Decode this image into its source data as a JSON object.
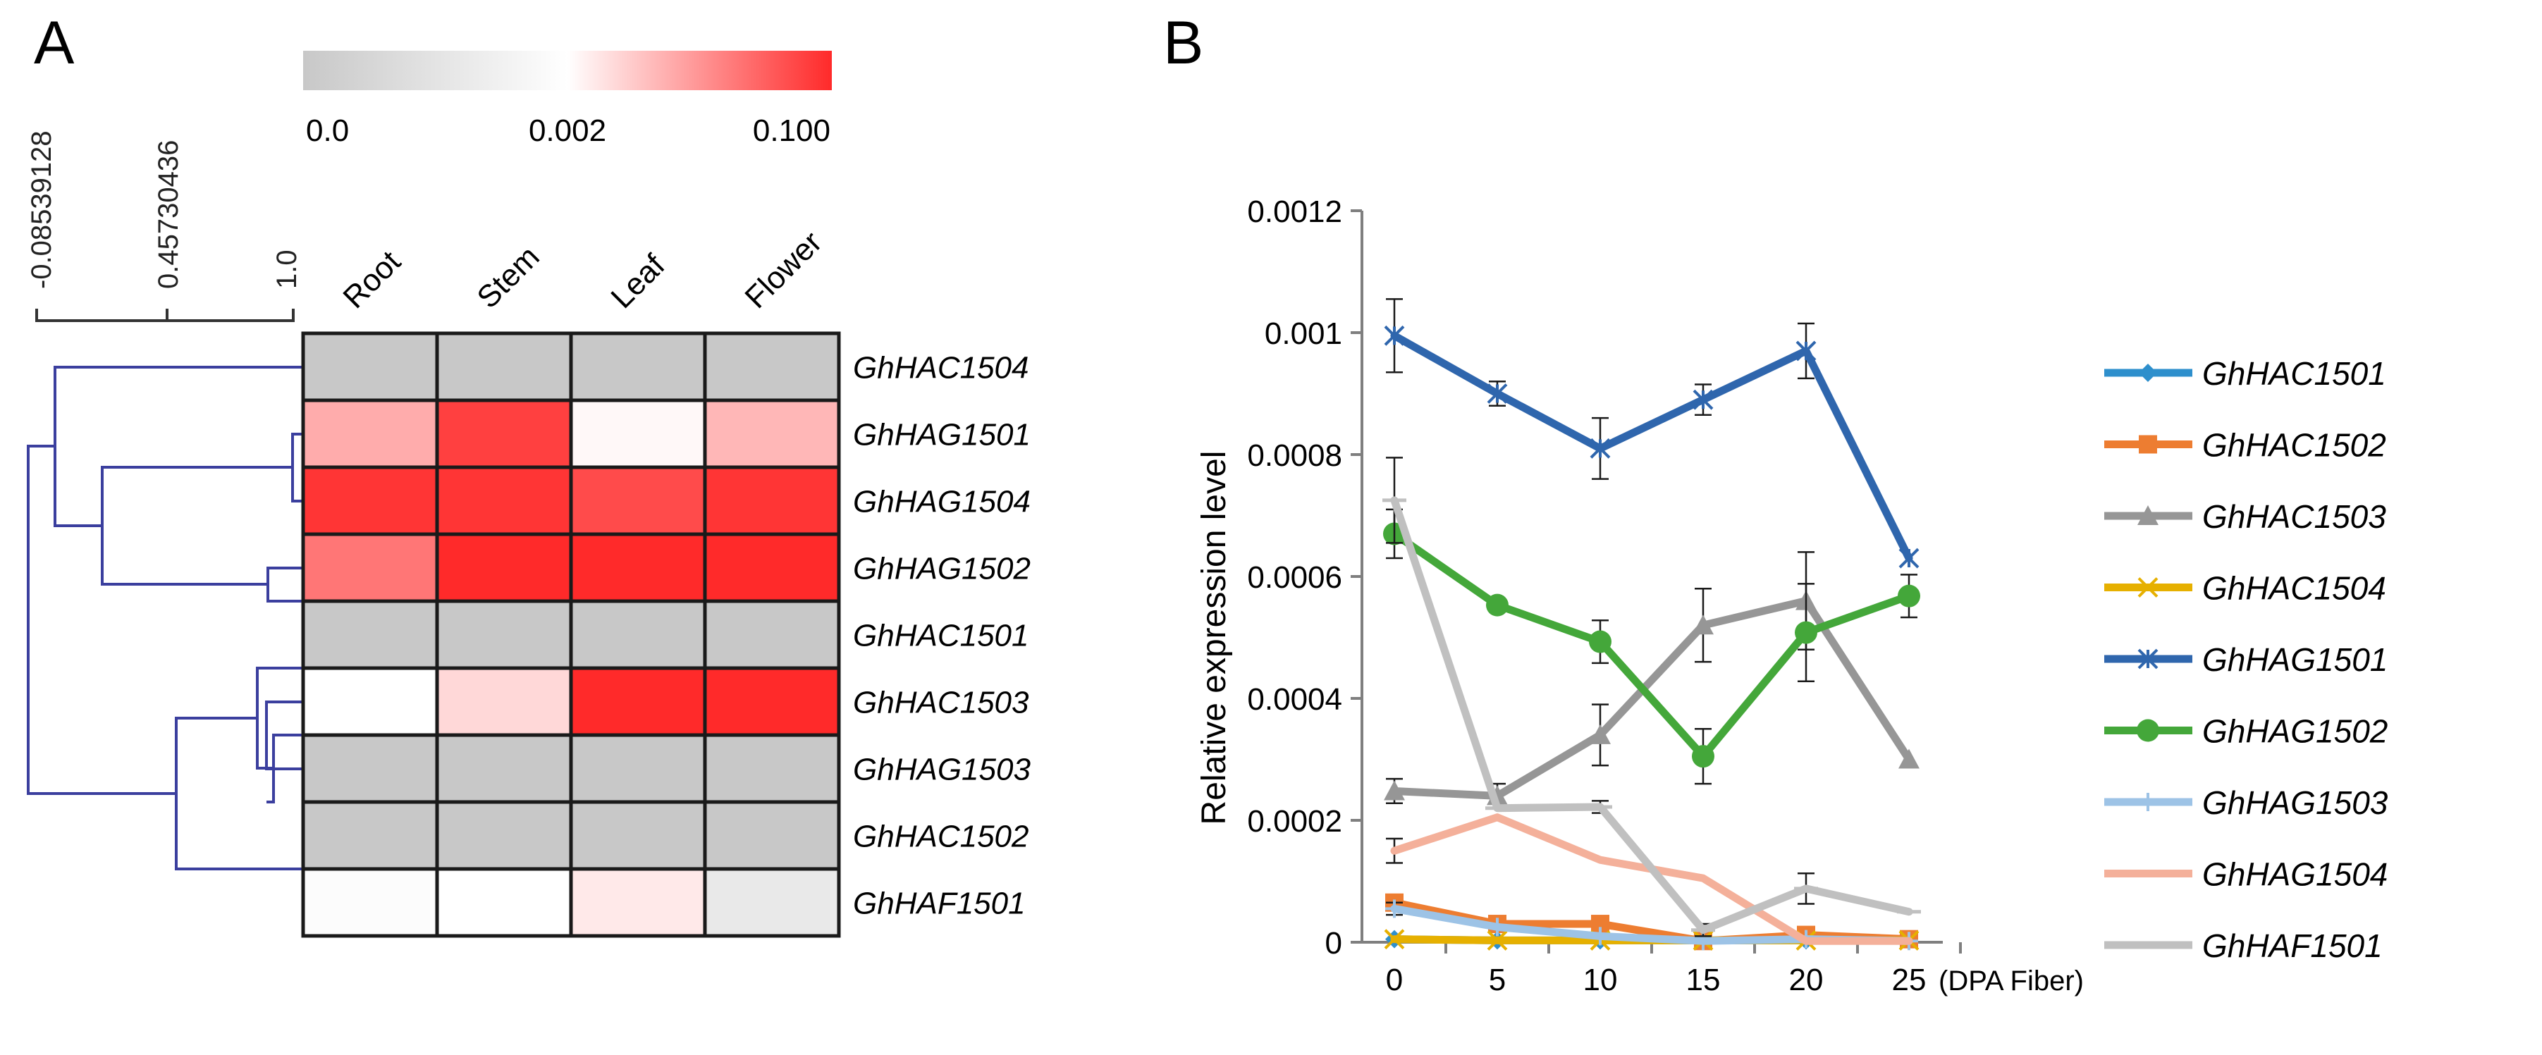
{
  "panels": {
    "a": "A",
    "b": "B"
  },
  "chart_data": [
    {
      "type": "heatmap",
      "panel": "A",
      "columns": [
        "Root",
        "Stem",
        "Leaf",
        "Flower"
      ],
      "rows": [
        "GhHAC1504",
        "GhHAG1501",
        "GhHAG1504",
        "GhHAG1502",
        "GhHAC1501",
        "GhHAC1503",
        "GhHAG1503",
        "GhHAC1502",
        "GhHAF1501"
      ],
      "values": [
        [
          0.0,
          0.0,
          0.0,
          0.0
        ],
        [
          0.04,
          0.09,
          0.005,
          0.035
        ],
        [
          0.095,
          0.095,
          0.085,
          0.095
        ],
        [
          0.065,
          0.1,
          0.1,
          0.1
        ],
        [
          0.0,
          0.0,
          0.0,
          0.0
        ],
        [
          0.0021,
          0.02,
          0.1,
          0.1
        ],
        [
          0.0,
          0.0,
          0.0,
          0.0
        ],
        [
          0.0,
          0.0,
          0.0,
          0.0
        ],
        [
          0.0019,
          0.002,
          0.012,
          0.0012
        ]
      ],
      "color_scale": {
        "ticks": [
          "0.0",
          "0.002",
          "0.100"
        ],
        "stops": [
          {
            "value": 0.0,
            "color": "#c8c8c8"
          },
          {
            "value": 0.002,
            "color": "#ffffff"
          },
          {
            "value": 0.1,
            "color": "#ff2a2a"
          }
        ]
      },
      "dendrogram": {
        "scale_ticks": [
          "-0.08539128",
          "0.45730436",
          "1.0"
        ],
        "color": "#3b3f9e"
      },
      "colors": {
        "missing": "#c8c8c8",
        "grid": "#1a1a1a"
      }
    },
    {
      "type": "line",
      "panel": "B",
      "ylabel": "Relative expression level",
      "xlabel": "(DPA Fiber)",
      "x": [
        0,
        5,
        10,
        15,
        20,
        25
      ],
      "ylim": [
        0,
        0.0012
      ],
      "yticks": [
        "0",
        "0.0002",
        "0.0004",
        "0.0006",
        "0.0008",
        "0.001",
        "0.0012"
      ],
      "xticks": [
        "0",
        "5",
        "10",
        "15",
        "20",
        "25"
      ],
      "series": [
        {
          "name": "GhHAC1501",
          "color": "#2e8fcc",
          "marker": "diamond",
          "values": [
            5e-06,
            3e-06,
            3e-06,
            3e-06,
            3e-06,
            3e-06
          ],
          "errors": [
            0,
            0,
            0,
            0,
            0,
            0
          ]
        },
        {
          "name": "GhHAC1502",
          "color": "#ed7d31",
          "marker": "square",
          "values": [
            6.5e-05,
            3e-05,
            3e-05,
            2e-06,
            1.2e-05,
            5e-06
          ],
          "errors": [
            1e-05,
            5e-06,
            5e-06,
            0,
            0,
            0
          ]
        },
        {
          "name": "GhHAC1503",
          "color": "#969696",
          "marker": "triangle",
          "values": [
            0.000248,
            0.00024,
            0.00034,
            0.00052,
            0.00056,
            0.0003
          ],
          "errors": [
            2e-05,
            2e-05,
            5e-05,
            6e-05,
            8e-05,
            0
          ]
        },
        {
          "name": "GhHAC1504",
          "color": "#e6b000",
          "marker": "x",
          "values": [
            5e-06,
            3e-06,
            3e-06,
            3e-06,
            3e-06,
            3e-06
          ],
          "errors": [
            0,
            0,
            0,
            0,
            0,
            0
          ]
        },
        {
          "name": "GhHAG1501",
          "color": "#2f66ad",
          "marker": "star",
          "values": [
            0.000995,
            0.0009,
            0.00081,
            0.00089,
            0.00097,
            0.00063
          ],
          "errors": [
            6e-05,
            2e-05,
            5e-05,
            2.5e-05,
            4.5e-05,
            0
          ]
        },
        {
          "name": "GhHAG1502",
          "color": "#44a73a",
          "marker": "circle",
          "values": [
            0.00067,
            0.000553,
            0.000493,
            0.000305,
            0.000508,
            0.000568
          ],
          "errors": [
            4e-05,
            0,
            3.5e-05,
            4.5e-05,
            8e-05,
            3.5e-05
          ]
        },
        {
          "name": "GhHAG1503",
          "color": "#9dc3e6",
          "marker": "plus",
          "values": [
            5.5e-05,
            2.5e-05,
            1e-05,
            2e-06,
            5e-06,
            2e-06
          ],
          "errors": [
            1e-05,
            0,
            0,
            0,
            0,
            0
          ]
        },
        {
          "name": "GhHAG1504",
          "color": "#f4b09a",
          "marker": "none",
          "values": [
            0.00015,
            0.000205,
            0.000135,
            0.000105,
            2e-06,
            2e-06
          ],
          "errors": [
            2e-05,
            0,
            0,
            0,
            0,
            0
          ]
        },
        {
          "name": "GhHAF1501",
          "color": "#c0c0c0",
          "marker": "dash",
          "values": [
            0.000725,
            0.00022,
            0.000222,
            2e-05,
            8.8e-05,
            5e-05
          ],
          "errors": [
            7e-05,
            0,
            1e-05,
            1e-05,
            2.5e-05,
            0
          ]
        }
      ],
      "colors": {
        "axis": "#7f7f7f",
        "errorbar": "#1a1a1a"
      }
    }
  ]
}
